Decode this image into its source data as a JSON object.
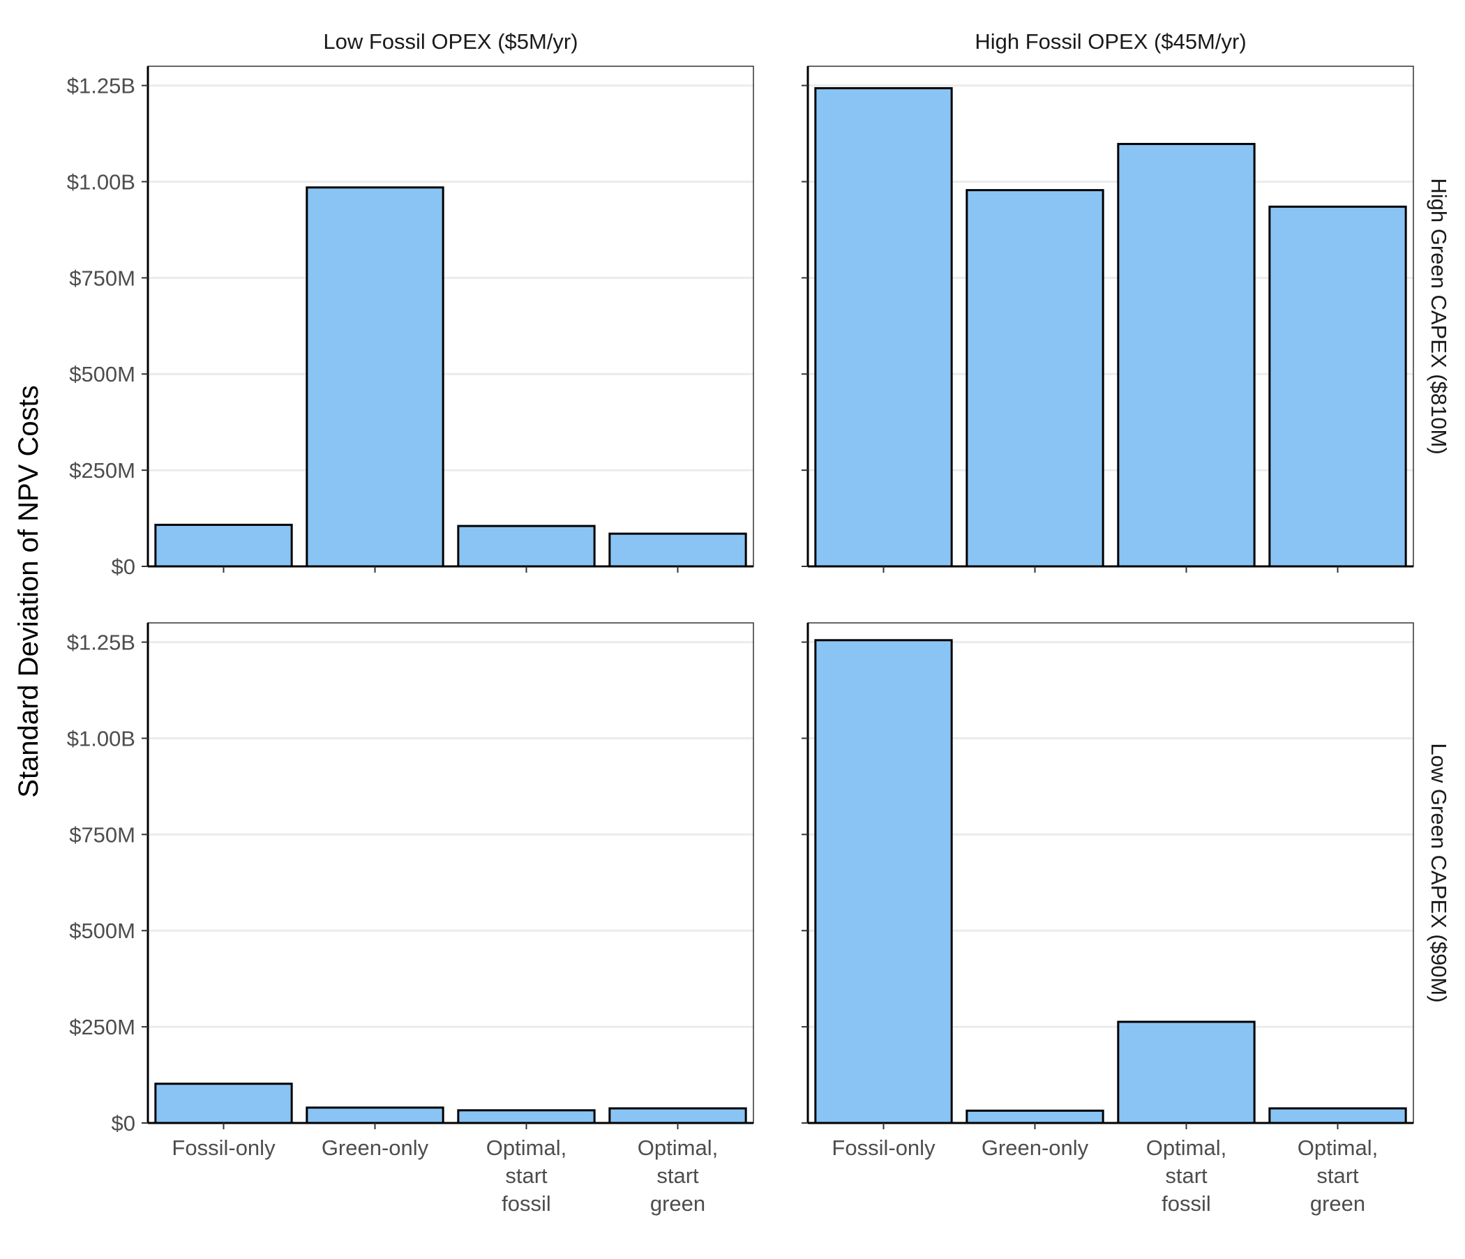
{
  "chart_data": {
    "type": "bar",
    "ylabel": "Standard Deviation of NPV Costs",
    "xlabel": "",
    "ylim": [
      0,
      1300000000
    ],
    "y_ticks": [
      {
        "value": 0,
        "label": "$0"
      },
      {
        "value": 250000000,
        "label": "$250M"
      },
      {
        "value": 500000000,
        "label": "$500M"
      },
      {
        "value": 750000000,
        "label": "$750M"
      },
      {
        "value": 1000000000,
        "label": "$1.00B"
      },
      {
        "value": 1250000000,
        "label": "$1.25B"
      }
    ],
    "categories": [
      [
        "Fossil-only"
      ],
      [
        "Green-only"
      ],
      [
        "Optimal,",
        "start",
        "fossil"
      ],
      [
        "Optimal,",
        "start",
        "green"
      ]
    ],
    "column_facets": [
      "Low Fossil OPEX ($5M/yr)",
      "High Fossil OPEX ($45M/yr)"
    ],
    "row_facets": [
      "High Green CAPEX ($810M)",
      "Low Green CAPEX ($90M)"
    ],
    "grid": "horizontal major lines",
    "bar_fill": "#89c4f4",
    "bar_stroke": "#000000",
    "panels": [
      {
        "row": 0,
        "col": 0,
        "values": [
          108000000,
          985000000,
          105000000,
          85000000
        ]
      },
      {
        "row": 0,
        "col": 1,
        "values": [
          1243000000,
          978000000,
          1098000000,
          935000000
        ]
      },
      {
        "row": 1,
        "col": 0,
        "values": [
          102000000,
          40000000,
          33000000,
          38000000
        ]
      },
      {
        "row": 1,
        "col": 1,
        "values": [
          1255000000,
          32000000,
          263000000,
          38000000
        ]
      }
    ]
  }
}
